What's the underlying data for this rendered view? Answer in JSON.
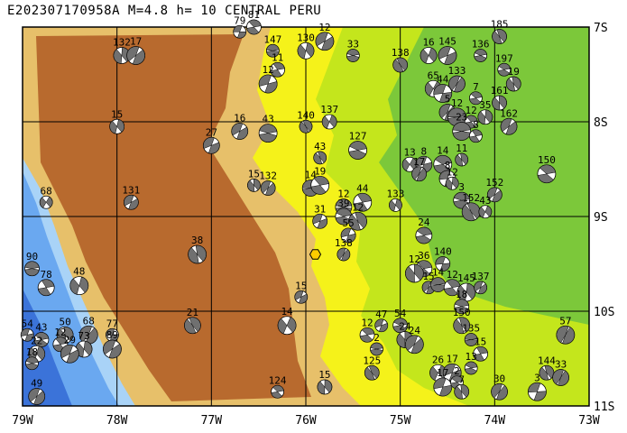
{
  "title": "E202307170958A M=4.8 h= 10 CENTRAL PERU",
  "lat_labels": [
    "7S",
    "8S",
    "9S",
    "10S",
    "11S"
  ],
  "lon_labels": [
    "79W",
    "78W",
    "77W",
    "76W",
    "75W",
    "74W",
    "73W"
  ],
  "colors": {
    "ocean_deep": "#3b73d9",
    "ocean": "#6aa8f0",
    "ocean_shallow": "#a9d3f7",
    "lowland_green": "#7cc83a",
    "lowland_lime": "#c4e61c",
    "foothill_yellow": "#f5f21a",
    "upland_tan": "#e7c06a",
    "highland_brown": "#b86a2e",
    "grid": "#000000",
    "epicenter": "#ffcc00"
  },
  "epicenter": {
    "lon": -75.9,
    "lat": -9.4
  },
  "events": [
    {
      "lon": -76.7,
      "lat": -7.05,
      "label": "79"
    },
    {
      "lon": -76.55,
      "lat": -7.0,
      "label": "81"
    },
    {
      "lon": -77.95,
      "lat": -7.3,
      "label": "132"
    },
    {
      "lon": -77.8,
      "lat": -7.3,
      "label": "17"
    },
    {
      "lon": -76.35,
      "lat": -7.25,
      "label": "147"
    },
    {
      "lon": -76.3,
      "lat": -7.45,
      "label": "11"
    },
    {
      "lon": -76.0,
      "lat": -7.25,
      "label": "130"
    },
    {
      "lon": -75.8,
      "lat": -7.15,
      "label": "12"
    },
    {
      "lon": -75.5,
      "lat": -7.3,
      "label": "33"
    },
    {
      "lon": -75.0,
      "lat": -7.4,
      "label": "138"
    },
    {
      "lon": -74.7,
      "lat": -7.3,
      "label": "16"
    },
    {
      "lon": -74.5,
      "lat": -7.3,
      "label": "145"
    },
    {
      "lon": -74.15,
      "lat": -7.3,
      "label": "136"
    },
    {
      "lon": -73.95,
      "lat": -7.1,
      "label": "185"
    },
    {
      "lon": -74.65,
      "lat": -7.65,
      "label": "65"
    },
    {
      "lon": -76.4,
      "lat": -7.6,
      "label": "12"
    },
    {
      "lon": -73.9,
      "lat": -7.45,
      "label": "197"
    },
    {
      "lon": -73.8,
      "lat": -7.6,
      "label": "19"
    },
    {
      "lon": -74.4,
      "lat": -7.6,
      "label": "133"
    },
    {
      "lon": -74.55,
      "lat": -7.7,
      "label": "44"
    },
    {
      "lon": -74.2,
      "lat": -7.75,
      "label": "7"
    },
    {
      "lon": -73.95,
      "lat": -7.8,
      "label": "161"
    },
    {
      "lon": -74.5,
      "lat": -7.9,
      "label": "5"
    },
    {
      "lon": -74.4,
      "lat": -7.95,
      "label": "12"
    },
    {
      "lon": -74.25,
      "lat": -8.0,
      "label": "12"
    },
    {
      "lon": -74.1,
      "lat": -7.95,
      "label": "35"
    },
    {
      "lon": -73.85,
      "lat": -8.05,
      "label": "162"
    },
    {
      "lon": -74.35,
      "lat": -8.1,
      "label": "23"
    },
    {
      "lon": -74.2,
      "lat": -8.15,
      "label": "8"
    },
    {
      "lon": -78.0,
      "lat": -8.05,
      "label": "15"
    },
    {
      "lon": -76.7,
      "lat": -8.1,
      "label": "16"
    },
    {
      "lon": -76.4,
      "lat": -8.12,
      "label": "43"
    },
    {
      "lon": -76.0,
      "lat": -8.05,
      "label": "140"
    },
    {
      "lon": -75.75,
      "lat": -8.0,
      "label": "137"
    },
    {
      "lon": -77.0,
      "lat": -8.25,
      "label": "27"
    },
    {
      "lon": -75.45,
      "lat": -8.3,
      "label": "127"
    },
    {
      "lon": -75.85,
      "lat": -8.38,
      "label": "43"
    },
    {
      "lon": -74.9,
      "lat": -8.45,
      "label": "13"
    },
    {
      "lon": -74.75,
      "lat": -8.45,
      "label": "8"
    },
    {
      "lon": -74.55,
      "lat": -8.45,
      "label": "14"
    },
    {
      "lon": -74.35,
      "lat": -8.4,
      "label": "11"
    },
    {
      "lon": -74.8,
      "lat": -8.55,
      "label": "17"
    },
    {
      "lon": -74.5,
      "lat": -8.6,
      "label": "8"
    },
    {
      "lon": -73.45,
      "lat": -8.55,
      "label": "150"
    },
    {
      "lon": -76.55,
      "lat": -8.67,
      "label": "15"
    },
    {
      "lon": -76.4,
      "lat": -8.7,
      "label": "132"
    },
    {
      "lon": -75.95,
      "lat": -8.7,
      "label": "14"
    },
    {
      "lon": -75.85,
      "lat": -8.67,
      "label": "19"
    },
    {
      "lon": -74.45,
      "lat": -8.65,
      "label": "12"
    },
    {
      "lon": -74.0,
      "lat": -8.77,
      "label": "152"
    },
    {
      "lon": -75.6,
      "lat": -8.9,
      "label": "12"
    },
    {
      "lon": -75.4,
      "lat": -8.85,
      "label": "44"
    },
    {
      "lon": -75.05,
      "lat": -8.88,
      "label": "133"
    },
    {
      "lon": -77.85,
      "lat": -8.85,
      "label": "131"
    },
    {
      "lon": -74.35,
      "lat": -8.83,
      "label": "3"
    },
    {
      "lon": -74.25,
      "lat": -8.95,
      "label": "152"
    },
    {
      "lon": -74.1,
      "lat": -8.95,
      "label": "43"
    },
    {
      "lon": -75.85,
      "lat": -9.05,
      "label": "31"
    },
    {
      "lon": -75.6,
      "lat": -9.0,
      "label": "39"
    },
    {
      "lon": -75.45,
      "lat": -9.05,
      "label": "12"
    },
    {
      "lon": -78.75,
      "lat": -8.85,
      "label": "68"
    },
    {
      "lon": -75.55,
      "lat": -9.2,
      "label": "55"
    },
    {
      "lon": -74.75,
      "lat": -9.2,
      "label": "24"
    },
    {
      "lon": -77.15,
      "lat": -9.4,
      "label": "38"
    },
    {
      "lon": -75.6,
      "lat": -9.4,
      "label": "138"
    },
    {
      "lon": -74.55,
      "lat": -9.5,
      "label": "140"
    },
    {
      "lon": -74.75,
      "lat": -9.55,
      "label": "36"
    },
    {
      "lon": -74.85,
      "lat": -9.6,
      "label": "12"
    },
    {
      "lon": -74.7,
      "lat": -9.75,
      "label": "15"
    },
    {
      "lon": -74.6,
      "lat": -9.72,
      "label": "14"
    },
    {
      "lon": -74.45,
      "lat": -9.75,
      "label": "12"
    },
    {
      "lon": -74.3,
      "lat": -9.8,
      "label": "145"
    },
    {
      "lon": -74.15,
      "lat": -9.75,
      "label": "137"
    },
    {
      "lon": -78.9,
      "lat": -9.55,
      "label": "90"
    },
    {
      "lon": -78.75,
      "lat": -9.75,
      "label": "78"
    },
    {
      "lon": -78.4,
      "lat": -9.73,
      "label": "48"
    },
    {
      "lon": -76.05,
      "lat": -9.85,
      "label": "15"
    },
    {
      "lon": -74.35,
      "lat": -9.95,
      "label": "18"
    },
    {
      "lon": -77.2,
      "lat": -10.15,
      "label": "21"
    },
    {
      "lon": -76.2,
      "lat": -10.15,
      "label": "14"
    },
    {
      "lon": -75.2,
      "lat": -10.15,
      "label": "47"
    },
    {
      "lon": -75.0,
      "lat": -10.15,
      "label": "54"
    },
    {
      "lon": -74.35,
      "lat": -10.15,
      "label": "150"
    },
    {
      "lon": -73.25,
      "lat": -10.25,
      "label": "57"
    },
    {
      "lon": -78.95,
      "lat": -10.25,
      "label": "54"
    },
    {
      "lon": -78.8,
      "lat": -10.3,
      "label": "43"
    },
    {
      "lon": -78.55,
      "lat": -10.25,
      "label": "50"
    },
    {
      "lon": -78.3,
      "lat": -10.25,
      "label": "68"
    },
    {
      "lon": -78.05,
      "lat": -10.25,
      "label": "77"
    },
    {
      "lon": -75.35,
      "lat": -10.25,
      "label": "12"
    },
    {
      "lon": -74.95,
      "lat": -10.3,
      "label": "24"
    },
    {
      "lon": -74.85,
      "lat": -10.35,
      "label": "24"
    },
    {
      "lon": -74.25,
      "lat": -10.3,
      "label": "135"
    },
    {
      "lon": -78.6,
      "lat": -10.35,
      "label": "12"
    },
    {
      "lon": -78.35,
      "lat": -10.4,
      "label": "73"
    },
    {
      "lon": -78.05,
      "lat": -10.4,
      "label": "89"
    },
    {
      "lon": -75.25,
      "lat": -10.4,
      "label": "2"
    },
    {
      "lon": -74.15,
      "lat": -10.45,
      "label": "15"
    },
    {
      "lon": -78.85,
      "lat": -10.45,
      "label": "22"
    },
    {
      "lon": -78.5,
      "lat": -10.45,
      "label": "29"
    },
    {
      "lon": -78.9,
      "lat": -10.55,
      "label": "18"
    },
    {
      "lon": -75.3,
      "lat": -10.65,
      "label": "125"
    },
    {
      "lon": -74.6,
      "lat": -10.65,
      "label": "26"
    },
    {
      "lon": -74.45,
      "lat": -10.65,
      "label": "17"
    },
    {
      "lon": -74.25,
      "lat": -10.6,
      "label": "13"
    },
    {
      "lon": -73.45,
      "lat": -10.65,
      "label": "144"
    },
    {
      "lon": -73.3,
      "lat": -10.7,
      "label": "33"
    },
    {
      "lon": -74.55,
      "lat": -10.8,
      "label": "17"
    },
    {
      "lon": -74.4,
      "lat": -10.75,
      "label": "2"
    },
    {
      "lon": -74.35,
      "lat": -10.85,
      "label": "7"
    },
    {
      "lon": -73.95,
      "lat": -10.85,
      "label": "30"
    },
    {
      "lon": -73.55,
      "lat": -10.85,
      "label": "3"
    },
    {
      "lon": -76.3,
      "lat": -10.85,
      "label": "124"
    },
    {
      "lon": -75.8,
      "lat": -10.8,
      "label": "15"
    },
    {
      "lon": -78.85,
      "lat": -10.9,
      "label": "49"
    }
  ]
}
